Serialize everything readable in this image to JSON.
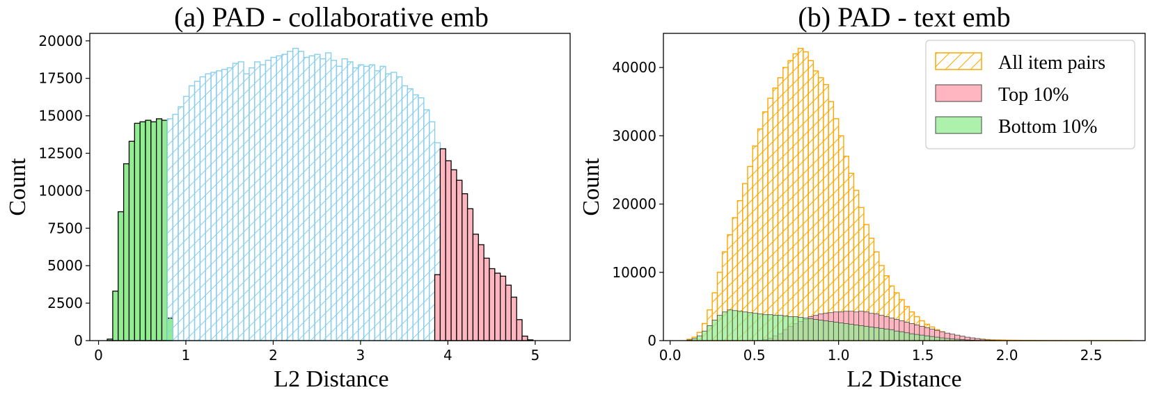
{
  "chart_data": [
    {
      "type": "histogram",
      "title": "(a) PAD - collaborative emb",
      "xlabel": "L2 Distance",
      "ylabel": "Count",
      "xlim": [
        -0.1,
        5.4
      ],
      "ylim": [
        0,
        20500
      ],
      "xticks": [
        0,
        1,
        2,
        3,
        4,
        5
      ],
      "yticks": [
        0,
        2500,
        5000,
        7500,
        10000,
        12500,
        15000,
        17500,
        20000
      ],
      "bin_start": 0.1,
      "bin_width": 0.0625,
      "series": [
        {
          "name": "Bottom 10%",
          "color": "#90ee90",
          "style": "solid",
          "start_bin": 0,
          "values": [
            100,
            3300,
            8600,
            11800,
            13300,
            14500,
            14600,
            14700,
            14600,
            14800,
            14700,
            1500
          ]
        },
        {
          "name": "All item pairs",
          "color": "#87ceeb",
          "style": "hatched",
          "start_bin": 11,
          "values": [
            14800,
            15100,
            15600,
            16300,
            17000,
            17300,
            17600,
            17800,
            17900,
            18000,
            18100,
            18200,
            18500,
            18600,
            17800,
            18200,
            18600,
            18400,
            18700,
            18900,
            19000,
            19100,
            19300,
            19500,
            19300,
            18900,
            19000,
            19100,
            18800,
            19200,
            18700,
            18300,
            18800,
            18600,
            18200,
            18400,
            18300,
            18400,
            18000,
            18300,
            17800,
            17900,
            17600,
            17000,
            16800,
            16400,
            16200,
            15400,
            14600,
            13200,
            12800
          ]
        },
        {
          "name": "Top 10%",
          "color": "#ffb6c1",
          "style": "solid",
          "start_bin": 60,
          "values": [
            4400,
            12800,
            12000,
            11400,
            10700,
            9800,
            8800,
            7100,
            6400,
            5500,
            4800,
            4500,
            4300,
            3700,
            2900,
            1400,
            300,
            50
          ]
        }
      ]
    },
    {
      "type": "histogram",
      "title": "(b) PAD - text emb",
      "xlabel": "L2 Distance",
      "ylabel": "Count",
      "xlim": [
        -0.04,
        2.82
      ],
      "ylim": [
        0,
        45000
      ],
      "xticks": [
        "0.0",
        "0.5",
        "1.0",
        "1.5",
        "2.0",
        "2.5"
      ],
      "yticks": [
        0,
        10000,
        20000,
        30000,
        40000
      ],
      "bin_start": 0.1,
      "bin_width": 0.03,
      "series": [
        {
          "name": "All item pairs",
          "color": "#ffa500",
          "style": "hatched",
          "values": [
            200,
            500,
            1200,
            2500,
            4500,
            7000,
            10000,
            13000,
            15500,
            18000,
            20500,
            23000,
            25500,
            28500,
            31000,
            33500,
            35500,
            37000,
            38500,
            40000,
            41000,
            42000,
            42800,
            42300,
            41000,
            39500,
            38500,
            37500,
            35000,
            32500,
            30000,
            27000,
            24500,
            22000,
            19500,
            17000,
            15000,
            13000,
            11000,
            9500,
            8000,
            7000,
            6000,
            5000,
            4200,
            3500,
            2900,
            2400,
            2000,
            1600,
            1300,
            1000,
            800,
            600,
            500,
            400,
            300,
            250,
            200,
            150,
            120,
            100,
            80,
            60,
            50,
            40,
            30,
            25,
            20,
            15,
            10,
            8,
            5,
            4,
            3,
            2,
            1,
            1,
            1,
            1,
            1,
            1,
            1,
            1,
            1,
            1,
            1,
            1
          ]
        },
        {
          "name": "Top 10%",
          "color": "#ffb6c1",
          "style": "solid",
          "values": [
            0,
            0,
            0,
            0,
            0,
            0,
            0,
            0,
            0,
            0,
            0,
            0,
            0,
            0,
            50,
            150,
            350,
            700,
            1000,
            1600,
            2100,
            2500,
            2800,
            3100,
            3500,
            3700,
            3900,
            4000,
            4100,
            4200,
            4200,
            4300,
            4300,
            4200,
            4300,
            4200,
            4000,
            3900,
            3700,
            3500,
            3300,
            3100,
            2900,
            2700,
            2500,
            2300,
            2100,
            1900,
            1700,
            1500,
            1300,
            1100,
            950,
            800,
            650,
            500,
            400,
            300,
            200,
            100,
            60,
            30,
            10
          ]
        },
        {
          "name": "Bottom 10%",
          "color": "#90ee90",
          "style": "solid",
          "values": [
            100,
            300,
            700,
            1400,
            2200,
            3000,
            3700,
            4200,
            4500,
            4400,
            4300,
            4200,
            4100,
            4000,
            3900,
            3800,
            3800,
            3700,
            3700,
            3600,
            3500,
            3500,
            3400,
            3300,
            3200,
            3100,
            3000,
            2900,
            2800,
            2700,
            2600,
            2500,
            2400,
            2300,
            2200,
            2100,
            2000,
            1900,
            1800,
            1700,
            1600,
            1400,
            1300,
            1150,
            1000,
            900,
            800,
            700,
            600,
            500,
            400,
            320,
            250,
            200,
            150,
            100,
            70,
            40,
            20,
            10
          ]
        }
      ],
      "legend": {
        "placement": "top-right",
        "entries": [
          "All item pairs",
          "Top 10%",
          "Bottom 10%"
        ]
      }
    }
  ]
}
